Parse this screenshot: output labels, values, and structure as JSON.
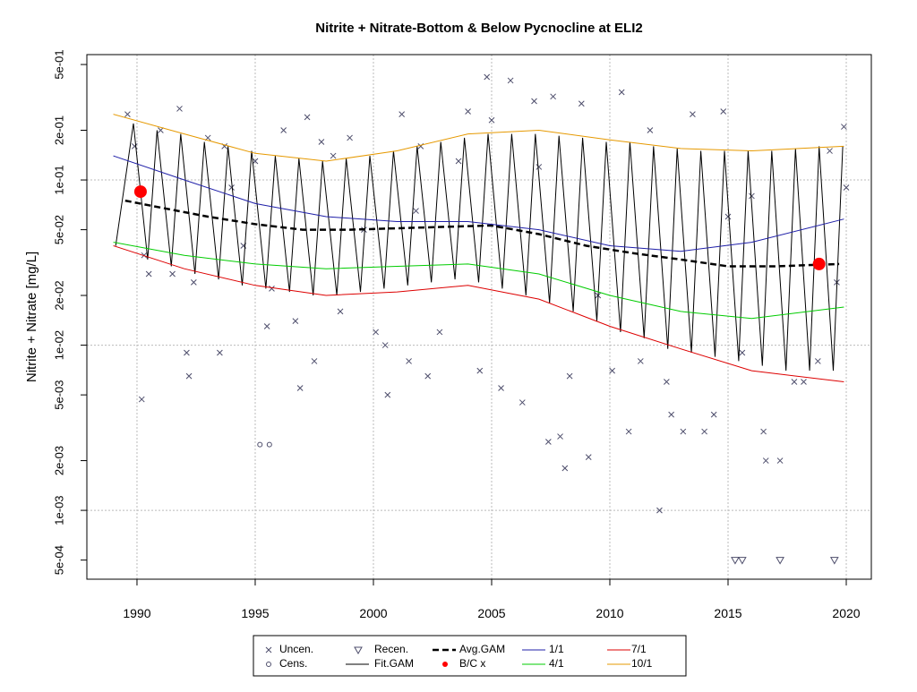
{
  "chart_data": {
    "type": "scatter",
    "title": "Nitrite + Nitrate-Bottom & Below Pycnocline at ELI2",
    "y_label": "Nitrite + Nitrate [mg/L]",
    "log_y": true,
    "grid": true,
    "xlim": [
      1987.88,
      2021.06
    ],
    "ylim": [
      0.000383,
      0.574
    ],
    "xticks": [
      1990,
      1995,
      2000,
      2005,
      2010,
      2015,
      2020
    ],
    "yticks": [
      {
        "value": 0.0005,
        "label": "5e-04"
      },
      {
        "value": 0.001,
        "label": "1e-03"
      },
      {
        "value": 0.002,
        "label": "2e-03"
      },
      {
        "value": 0.005,
        "label": "5e-03"
      },
      {
        "value": 0.01,
        "label": "1e-02"
      },
      {
        "value": 0.02,
        "label": "2e-02"
      },
      {
        "value": 0.05,
        "label": "5e-02"
      },
      {
        "value": 0.1,
        "label": "1e-01"
      },
      {
        "value": 0.2,
        "label": "2e-01"
      },
      {
        "value": 0.5,
        "label": "5e-01"
      }
    ],
    "series": [
      {
        "name": "Uncen.",
        "type": "scatter",
        "marker": "x",
        "color": "#4d4d6b",
        "x": [
          1989.6,
          1989.9,
          1990.3,
          1990.2,
          1990.5,
          1991.0,
          1991.5,
          1991.8,
          1992.1,
          1992.2,
          1992.4,
          1993.0,
          1993.5,
          1993.7,
          1994.0,
          1994.5,
          1995.0,
          1995.5,
          1995.7,
          1996.2,
          1996.7,
          1996.9,
          1997.2,
          1997.5,
          1997.8,
          1998.3,
          1998.6,
          1999.0,
          1999.6,
          2000.1,
          2000.5,
          2000.6,
          2001.2,
          2001.5,
          2001.8,
          2002.0,
          2002.3,
          2002.8,
          2003.6,
          2004.0,
          2004.5,
          2004.8,
          2005.0,
          2005.4,
          2005.8,
          2006.3,
          2006.8,
          2007.0,
          2007.4,
          2007.6,
          2007.9,
          2008.1,
          2008.3,
          2008.8,
          2009.1,
          2009.5,
          2010.1,
          2010.5,
          2010.8,
          2011.3,
          2011.7,
          2012.1,
          2012.4,
          2012.6,
          2013.1,
          2013.5,
          2014.0,
          2014.4,
          2014.8,
          2015.0,
          2015.6,
          2016.0,
          2016.5,
          2016.6,
          2017.2,
          2017.8,
          2018.2,
          2018.8,
          2019.3,
          2019.6,
          2019.9,
          2020.0
        ],
        "values": [
          0.25,
          0.16,
          0.035,
          0.0047,
          0.027,
          0.2,
          0.027,
          0.27,
          0.009,
          0.0065,
          0.024,
          0.18,
          0.009,
          0.16,
          0.09,
          0.04,
          0.13,
          0.013,
          0.022,
          0.2,
          0.014,
          0.0055,
          0.24,
          0.008,
          0.17,
          0.14,
          0.016,
          0.18,
          0.05,
          0.012,
          0.01,
          0.005,
          0.25,
          0.008,
          0.065,
          0.16,
          0.0065,
          0.012,
          0.13,
          0.26,
          0.007,
          0.42,
          0.23,
          0.0055,
          0.4,
          0.0045,
          0.3,
          0.12,
          0.0026,
          0.32,
          0.0028,
          0.0018,
          0.0065,
          0.29,
          0.0021,
          0.02,
          0.007,
          0.34,
          0.003,
          0.008,
          0.2,
          0.001,
          0.006,
          0.0038,
          0.003,
          0.25,
          0.003,
          0.0038,
          0.26,
          0.06,
          0.009,
          0.08,
          0.003,
          0.002,
          0.002,
          0.006,
          0.006,
          0.008,
          0.15,
          0.024,
          0.21,
          0.09
        ]
      },
      {
        "name": "Cens.",
        "type": "scatter",
        "marker": "circle",
        "color": "#4d4d6b",
        "x": [
          1995.2,
          1995.6
        ],
        "values": [
          0.0025,
          0.0025
        ]
      },
      {
        "name": "Recen.",
        "type": "scatter",
        "marker": "triangle-down",
        "color": "#4d4d6b",
        "x": [
          2015.3,
          2015.6,
          2017.2,
          2019.5
        ],
        "values": [
          0.0005,
          0.0005,
          0.0005,
          0.0005
        ]
      },
      {
        "name": "Fit.GAM",
        "type": "line",
        "color": "#000000",
        "dash": "solid",
        "width": 1,
        "x": [
          1989.1,
          1989.85,
          1990.45,
          1990.85,
          1991.45,
          1991.85,
          1992.45,
          1992.85,
          1993.45,
          1993.85,
          1994.45,
          1994.85,
          1995.45,
          1995.85,
          1996.45,
          1996.85,
          1997.45,
          1997.85,
          1998.45,
          1998.85,
          1999.45,
          1999.85,
          2000.45,
          2000.85,
          2001.45,
          2001.85,
          2002.45,
          2002.85,
          2003.45,
          2003.85,
          2004.45,
          2004.85,
          2005.45,
          2005.85,
          2006.45,
          2006.85,
          2007.45,
          2007.85,
          2008.45,
          2008.85,
          2009.45,
          2009.85,
          2010.45,
          2010.85,
          2011.45,
          2011.85,
          2012.45,
          2012.85,
          2013.45,
          2013.85,
          2014.45,
          2014.85,
          2015.45,
          2015.85,
          2016.45,
          2016.85,
          2017.45,
          2017.85,
          2018.45,
          2018.85,
          2019.45,
          2019.85
        ],
        "values": [
          0.04,
          0.22,
          0.033,
          0.2,
          0.03,
          0.19,
          0.027,
          0.17,
          0.025,
          0.16,
          0.023,
          0.15,
          0.022,
          0.14,
          0.021,
          0.135,
          0.02,
          0.13,
          0.02,
          0.135,
          0.021,
          0.14,
          0.022,
          0.15,
          0.023,
          0.16,
          0.024,
          0.17,
          0.025,
          0.18,
          0.024,
          0.19,
          0.022,
          0.19,
          0.02,
          0.19,
          0.018,
          0.185,
          0.016,
          0.18,
          0.014,
          0.17,
          0.012,
          0.17,
          0.011,
          0.16,
          0.0095,
          0.155,
          0.009,
          0.15,
          0.0085,
          0.15,
          0.008,
          0.15,
          0.0075,
          0.15,
          0.007,
          0.155,
          0.007,
          0.16,
          0.007,
          0.16
        ]
      },
      {
        "name": "Avg.GAM",
        "type": "line",
        "color": "#000000",
        "dash": "dashed",
        "width": 2.5,
        "x": [
          1989.5,
          1991,
          1993,
          1995,
          1997,
          1999,
          2001,
          2003,
          2005,
          2007,
          2009,
          2011,
          2013,
          2015,
          2017,
          2019.7
        ],
        "values": [
          0.075,
          0.068,
          0.06,
          0.054,
          0.05,
          0.05,
          0.051,
          0.052,
          0.053,
          0.047,
          0.04,
          0.036,
          0.033,
          0.03,
          0.03,
          0.031
        ]
      },
      {
        "name": "B/C x",
        "type": "scatter",
        "marker": "dot",
        "color": "#ff0000",
        "x": [
          1990.15,
          2018.85
        ],
        "values": [
          0.085,
          0.031
        ]
      },
      {
        "name": "1/1",
        "type": "line",
        "color": "#1f1fa8",
        "dash": "solid",
        "width": 1,
        "x": [
          1989,
          1992,
          1995,
          1998,
          2001,
          2004,
          2007,
          2010,
          2013,
          2016,
          2019.9
        ],
        "values": [
          0.14,
          0.1,
          0.072,
          0.06,
          0.056,
          0.056,
          0.05,
          0.04,
          0.037,
          0.042,
          0.058
        ]
      },
      {
        "name": "4/1",
        "type": "line",
        "color": "#00cc00",
        "dash": "solid",
        "width": 1,
        "x": [
          1989,
          1992,
          1995,
          1998,
          2001,
          2004,
          2007,
          2010,
          2013,
          2016,
          2019.9
        ],
        "values": [
          0.042,
          0.035,
          0.031,
          0.029,
          0.03,
          0.031,
          0.027,
          0.02,
          0.016,
          0.0145,
          0.017
        ]
      },
      {
        "name": "7/1",
        "type": "line",
        "color": "#dd0000",
        "dash": "solid",
        "width": 1,
        "x": [
          1989,
          1992,
          1995,
          1998,
          2001,
          2004,
          2007,
          2010,
          2013,
          2016,
          2019.9
        ],
        "values": [
          0.04,
          0.029,
          0.023,
          0.02,
          0.021,
          0.023,
          0.019,
          0.013,
          0.0095,
          0.007,
          0.006
        ]
      },
      {
        "name": "10/1",
        "type": "line",
        "color": "#e69900",
        "dash": "solid",
        "width": 1,
        "x": [
          1989,
          1992,
          1995,
          1998,
          2001,
          2004,
          2007,
          2010,
          2013,
          2016,
          2019.9
        ],
        "values": [
          0.25,
          0.19,
          0.145,
          0.13,
          0.15,
          0.19,
          0.2,
          0.175,
          0.155,
          0.15,
          0.16
        ]
      }
    ]
  }
}
